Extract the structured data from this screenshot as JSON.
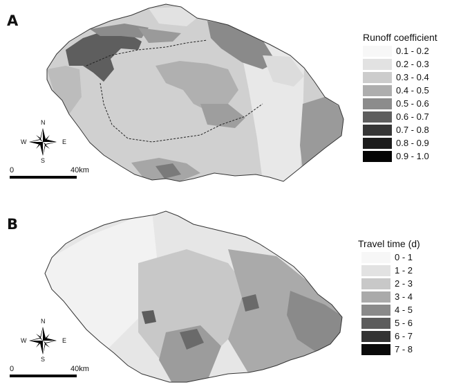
{
  "panels": [
    {
      "label": "A",
      "legend": {
        "title": "Runoff coefficient",
        "classes": [
          {
            "label": "0.1 - 0.2",
            "color": "#f7f7f7"
          },
          {
            "label": "0.2 - 0.3",
            "color": "#e2e2e2"
          },
          {
            "label": "0.3 - 0.4",
            "color": "#cccccc"
          },
          {
            "label": "0.4 - 0.5",
            "color": "#aeaeae"
          },
          {
            "label": "0.5 - 0.6",
            "color": "#8c8c8c"
          },
          {
            "label": "0.6 - 0.7",
            "color": "#5e5e5e"
          },
          {
            "label": "0.7 - 0.8",
            "color": "#363636"
          },
          {
            "label": "0.8 - 0.9",
            "color": "#1c1c1c"
          },
          {
            "label": "0.9 - 1.0",
            "color": "#050505"
          }
        ]
      },
      "compass": {
        "n": "N",
        "s": "S",
        "e": "E",
        "w": "W"
      },
      "scale": {
        "start": "0",
        "end": "40km"
      }
    },
    {
      "label": "B",
      "legend": {
        "title": "Travel time (d)",
        "classes": [
          {
            "label": "0 - 1",
            "color": "#f7f7f7"
          },
          {
            "label": "1 - 2",
            "color": "#e2e2e2"
          },
          {
            "label": "2 - 3",
            "color": "#c8c8c8"
          },
          {
            "label": "3 - 4",
            "color": "#aaaaaa"
          },
          {
            "label": "4 - 5",
            "color": "#8a8a8a"
          },
          {
            "label": "5 - 6",
            "color": "#5c5c5c"
          },
          {
            "label": "6 - 7",
            "color": "#333333"
          },
          {
            "label": "7 - 8",
            "color": "#0a0a0a"
          }
        ]
      },
      "compass": {
        "n": "N",
        "s": "S",
        "e": "E",
        "w": "W"
      },
      "scale": {
        "start": "0",
        "end": "40km"
      }
    }
  ]
}
